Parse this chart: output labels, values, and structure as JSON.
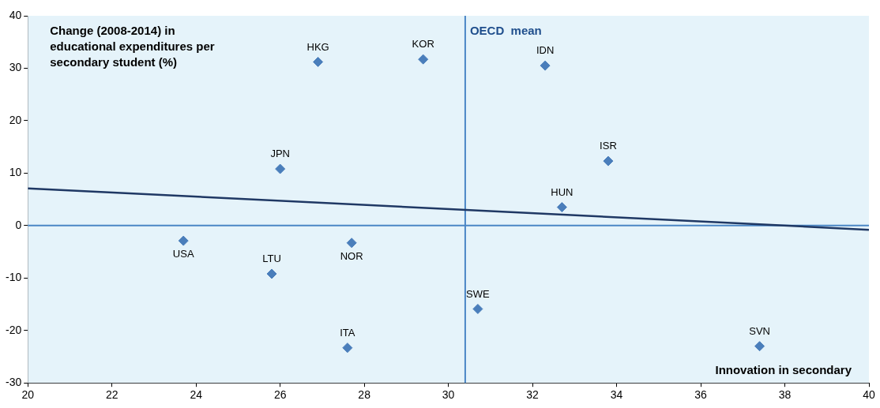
{
  "chart_data": {
    "type": "scatter",
    "xlabel": "Innovation in secondary",
    "ylabel": "Change (2008-2014) in educational expenditures per secondary student (%)",
    "xlim": [
      20,
      40
    ],
    "xticks": [
      20,
      22,
      24,
      26,
      28,
      30,
      32,
      34,
      36,
      38,
      40
    ],
    "ylim": [
      -30,
      40
    ],
    "yticks": [
      -30,
      -20,
      -10,
      0,
      10,
      20,
      30,
      40
    ],
    "grid": false,
    "legend": false,
    "marker": "diamond",
    "series": [
      {
        "color": "#4a7ebb",
        "x": [
          26.9,
          29.4,
          32.3,
          26.0,
          33.8,
          32.7,
          23.7,
          27.7,
          25.8,
          30.7,
          27.6,
          37.4
        ],
        "values": [
          31.2,
          31.7,
          30.5,
          10.8,
          12.3,
          3.5,
          -2.9,
          -3.3,
          -9.2,
          -15.9,
          -23.3,
          -23.0
        ]
      },
      {
        "type": "line",
        "color": "#1f3864",
        "x": [
          20,
          40
        ],
        "values": [
          7.1,
          -0.8
        ],
        "marker": "none"
      }
    ],
    "ref_lines": [
      {
        "axis": "y",
        "value": 0,
        "color": "#4a86c5"
      },
      {
        "axis": "x",
        "value": 30.4,
        "label": "OECD  mean",
        "color": "#4a86c5"
      }
    ],
    "annotations": [
      {
        "text": "HKG",
        "x": 26.9,
        "y": 31.2
      },
      {
        "text": "KOR",
        "x": 29.4,
        "y": 31.7
      },
      {
        "text": "IDN",
        "x": 32.3,
        "y": 30.5
      },
      {
        "text": "JPN",
        "x": 26.0,
        "y": 10.8
      },
      {
        "text": "ISR",
        "x": 33.8,
        "y": 12.3
      },
      {
        "text": "HUN",
        "x": 32.7,
        "y": 3.5
      },
      {
        "text": "USA",
        "x": 23.7,
        "y": -2.9
      },
      {
        "text": "NOR",
        "x": 27.7,
        "y": -3.3
      },
      {
        "text": "LTU",
        "x": 25.8,
        "y": -9.2
      },
      {
        "text": "SWE",
        "x": 30.7,
        "y": -15.9
      },
      {
        "text": "ITA",
        "x": 27.6,
        "y": -23.3
      },
      {
        "text": "SVN",
        "x": 37.4,
        "y": -23.0
      }
    ]
  }
}
